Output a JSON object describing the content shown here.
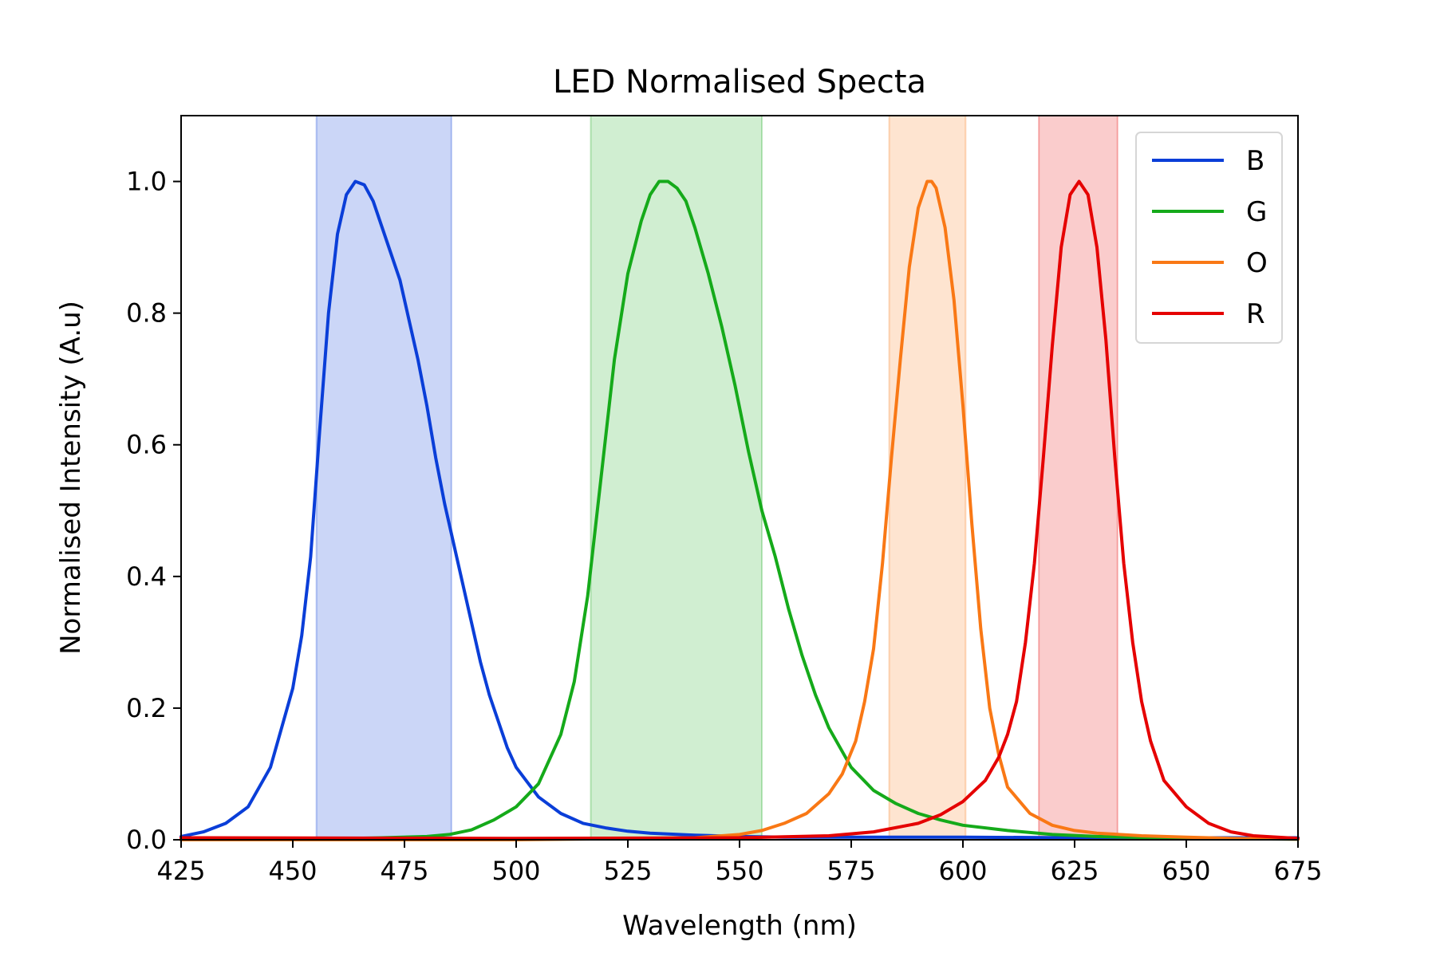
{
  "chart_data": {
    "type": "line",
    "title": "LED Normalised Specta",
    "xlabel": "Wavelength (nm)",
    "ylabel": "Normalised Intensity (A.u)",
    "xlim": [
      425,
      675
    ],
    "ylim": [
      0,
      1.1
    ],
    "xticks": [
      425,
      450,
      475,
      500,
      525,
      550,
      575,
      600,
      625,
      650,
      675
    ],
    "yticks": [
      0.0,
      0.2,
      0.4,
      0.6,
      0.8,
      1.0
    ],
    "ytick_labels": [
      "0.0",
      "0.2",
      "0.4",
      "0.6",
      "0.8",
      "1.0"
    ],
    "grid": false,
    "legend_position": "top-right",
    "bands": [
      {
        "series": "B",
        "x_start": 455.3,
        "x_end": 485.5,
        "color": "#0a3ed8",
        "alpha": 0.21
      },
      {
        "series": "G",
        "x_start": 516.7,
        "x_end": 555.0,
        "color": "#15aa1a",
        "alpha": 0.2
      },
      {
        "series": "O",
        "x_start": 583.5,
        "x_end": 600.6,
        "color": "#f97815",
        "alpha": 0.2
      },
      {
        "series": "R",
        "x_start": 617.0,
        "x_end": 634.6,
        "color": "#e50000",
        "alpha": 0.2
      }
    ],
    "series": [
      {
        "name": "B",
        "color": "#0a3ed8",
        "x": [
          425,
          430,
          435,
          440,
          445,
          450,
          452,
          454,
          456,
          458,
          460,
          462,
          464,
          466,
          468,
          470,
          472,
          474,
          476,
          478,
          480,
          482,
          484,
          486,
          488,
          490,
          492,
          494,
          496,
          498,
          500,
          505,
          510,
          515,
          520,
          525,
          530,
          540,
          550,
          560,
          580,
          600,
          625,
          650,
          675
        ],
        "y": [
          0.005,
          0.012,
          0.025,
          0.05,
          0.11,
          0.23,
          0.31,
          0.43,
          0.62,
          0.8,
          0.92,
          0.98,
          1.0,
          0.995,
          0.97,
          0.93,
          0.89,
          0.85,
          0.79,
          0.73,
          0.66,
          0.58,
          0.51,
          0.45,
          0.39,
          0.33,
          0.27,
          0.22,
          0.18,
          0.14,
          0.11,
          0.065,
          0.04,
          0.025,
          0.018,
          0.013,
          0.01,
          0.007,
          0.005,
          0.004,
          0.004,
          0.004,
          0.003,
          0.003,
          0.003
        ]
      },
      {
        "name": "G",
        "color": "#15aa1a",
        "x": [
          425,
          450,
          470,
          480,
          485,
          490,
          495,
          500,
          505,
          510,
          513,
          516,
          519,
          522,
          525,
          528,
          530,
          532,
          534,
          536,
          538,
          540,
          543,
          546,
          549,
          552,
          555,
          558,
          561,
          564,
          567,
          570,
          575,
          580,
          585,
          590,
          595,
          600,
          610,
          620,
          630,
          650,
          675
        ],
        "y": [
          0.0,
          0.0,
          0.003,
          0.005,
          0.008,
          0.015,
          0.03,
          0.05,
          0.085,
          0.16,
          0.24,
          0.37,
          0.55,
          0.73,
          0.86,
          0.94,
          0.98,
          1.0,
          1.0,
          0.99,
          0.97,
          0.93,
          0.86,
          0.78,
          0.69,
          0.59,
          0.5,
          0.43,
          0.35,
          0.28,
          0.22,
          0.17,
          0.11,
          0.075,
          0.055,
          0.04,
          0.03,
          0.022,
          0.014,
          0.008,
          0.005,
          0.002,
          0.001
        ]
      },
      {
        "name": "O",
        "color": "#f97815",
        "x": [
          425,
          500,
          540,
          550,
          555,
          560,
          565,
          570,
          573,
          576,
          578,
          580,
          582,
          584,
          586,
          588,
          590,
          592,
          593,
          594,
          596,
          598,
          600,
          602,
          604,
          606,
          608,
          610,
          615,
          620,
          625,
          630,
          640,
          650,
          660,
          675
        ],
        "y": [
          0.0,
          0.0,
          0.003,
          0.008,
          0.014,
          0.025,
          0.04,
          0.07,
          0.1,
          0.15,
          0.21,
          0.29,
          0.42,
          0.58,
          0.73,
          0.87,
          0.96,
          1.0,
          1.0,
          0.99,
          0.93,
          0.82,
          0.66,
          0.48,
          0.32,
          0.2,
          0.13,
          0.08,
          0.04,
          0.022,
          0.014,
          0.01,
          0.006,
          0.004,
          0.002,
          0.001
        ]
      },
      {
        "name": "R",
        "color": "#e50000",
        "x": [
          425,
          500,
          550,
          570,
          580,
          590,
          595,
          600,
          605,
          608,
          610,
          612,
          614,
          616,
          618,
          620,
          622,
          624,
          626,
          628,
          630,
          632,
          634,
          636,
          638,
          640,
          642,
          645,
          650,
          655,
          660,
          665,
          675
        ],
        "y": [
          0.003,
          0.002,
          0.003,
          0.006,
          0.012,
          0.025,
          0.038,
          0.058,
          0.09,
          0.125,
          0.16,
          0.21,
          0.3,
          0.42,
          0.58,
          0.75,
          0.9,
          0.98,
          1.0,
          0.98,
          0.9,
          0.76,
          0.58,
          0.42,
          0.3,
          0.21,
          0.15,
          0.09,
          0.05,
          0.025,
          0.012,
          0.006,
          0.002
        ]
      }
    ]
  }
}
